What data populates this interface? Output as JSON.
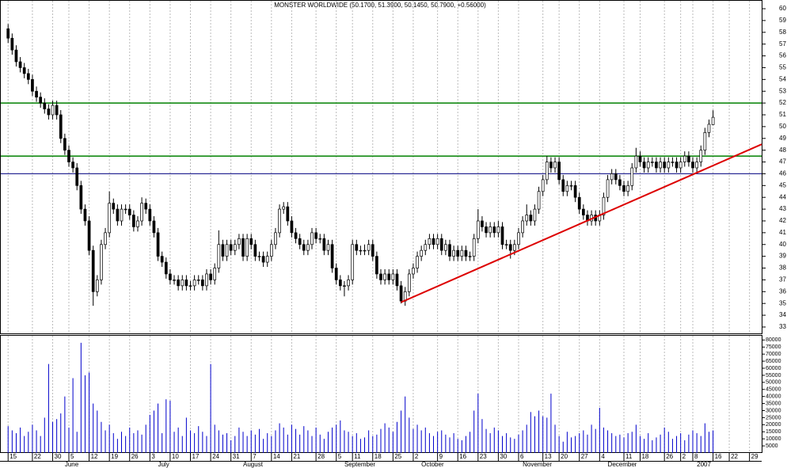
{
  "chart_data": {
    "type": "candlestick",
    "title": "MONSTER WORLDWIDE (50.1700, 51.3900, 50.1450, 50.7900, +0.56000)",
    "up_color": "#ffffff",
    "down_color": "#000000",
    "xlim": [
      -2,
      186
    ],
    "ylim": [
      32.46,
      60.74
    ],
    "yticks": [
      33,
      34,
      35,
      36,
      37,
      38,
      39,
      40,
      41,
      42,
      43,
      44,
      45,
      46,
      47,
      48,
      49,
      50,
      51,
      52,
      53,
      54,
      55,
      56,
      57,
      58,
      59,
      60
    ],
    "grid": "x",
    "xticks": [
      {
        "value": 0,
        "label": "15"
      },
      {
        "value": 6,
        "label": "22"
      },
      {
        "value": 11,
        "label": "30"
      },
      {
        "value": 15,
        "label": "5"
      },
      {
        "value": 20,
        "label": "12"
      },
      {
        "value": 25,
        "label": "19"
      },
      {
        "value": 30,
        "label": "26"
      },
      {
        "value": 35,
        "label": "3"
      },
      {
        "value": 40,
        "label": "10"
      },
      {
        "value": 45,
        "label": "17"
      },
      {
        "value": 50,
        "label": "24"
      },
      {
        "value": 55,
        "label": "31"
      },
      {
        "value": 60,
        "label": "7"
      },
      {
        "value": 65,
        "label": "14"
      },
      {
        "value": 70,
        "label": "21"
      },
      {
        "value": 76,
        "label": "28"
      },
      {
        "value": 81,
        "label": "5"
      },
      {
        "value": 85,
        "label": "11"
      },
      {
        "value": 90,
        "label": "18"
      },
      {
        "value": 95,
        "label": "25"
      },
      {
        "value": 100,
        "label": "2"
      },
      {
        "value": 106,
        "label": "9"
      },
      {
        "value": 111,
        "label": "16"
      },
      {
        "value": 116,
        "label": "23"
      },
      {
        "value": 121,
        "label": "30"
      },
      {
        "value": 126,
        "label": "6"
      },
      {
        "value": 132,
        "label": "13"
      },
      {
        "value": 136,
        "label": "20"
      },
      {
        "value": 141,
        "label": "27"
      },
      {
        "value": 146,
        "label": "4"
      },
      {
        "value": 152,
        "label": "11"
      },
      {
        "value": 156,
        "label": "18"
      },
      {
        "value": 162,
        "label": "26"
      },
      {
        "value": 166,
        "label": "2"
      },
      {
        "value": 169,
        "label": "8"
      },
      {
        "value": 174,
        "label": "16"
      },
      {
        "value": 178,
        "label": "22"
      },
      {
        "value": 183,
        "label": "29"
      }
    ],
    "month_labels": [
      {
        "value": 14,
        "label": "June"
      },
      {
        "value": 37,
        "label": "July"
      },
      {
        "value": 58,
        "label": "August"
      },
      {
        "value": 83,
        "label": "September"
      },
      {
        "value": 102,
        "label": "October"
      },
      {
        "value": 127,
        "label": "November"
      },
      {
        "value": 148,
        "label": "December"
      },
      {
        "value": 170,
        "label": "2007"
      }
    ],
    "open": [
      58.3,
      57.5,
      56.5,
      55.5,
      55,
      54.5,
      54,
      53,
      52.5,
      52,
      51.5,
      51,
      51.8,
      51,
      49,
      48,
      47,
      46.5,
      45,
      43,
      42,
      39.5,
      36,
      37,
      40,
      41,
      43.5,
      43,
      42,
      43,
      43,
      42.5,
      41.5,
      42,
      43.5,
      43,
      42,
      41,
      39,
      38.5,
      37.5,
      37,
      37,
      36.5,
      37,
      36.5,
      36.5,
      37,
      37,
      36.5,
      37.5,
      37,
      38,
      40,
      39,
      40,
      39.5,
      40,
      40.5,
      39,
      40.5,
      40,
      39,
      39,
      38.5,
      39,
      40,
      41,
      43,
      43.2,
      42,
      41,
      40.5,
      40,
      39.5,
      40,
      41,
      40.5,
      40.5,
      39.5,
      40,
      38,
      37,
      36.5,
      36.5,
      37,
      40,
      39.5,
      39.5,
      39.5,
      40,
      39,
      37.5,
      37,
      37.5,
      37,
      37.5,
      36.5,
      35.2,
      36,
      37.5,
      38,
      39,
      39.5,
      40,
      40.5,
      40,
      40.5,
      39.5,
      40,
      39,
      39.5,
      39,
      39.5,
      39,
      39,
      40.5,
      42,
      41.5,
      41,
      41.5,
      41,
      41.5,
      40,
      40,
      39.5,
      40,
      41,
      42,
      42.5,
      42,
      43,
      44.5,
      45.5,
      47,
      46.5,
      47,
      45.5,
      44.5,
      45,
      45,
      44,
      43,
      42.5,
      42,
      42.5,
      42,
      42.5,
      44,
      45.5,
      46,
      45.5,
      45,
      44.5,
      45,
      46.5,
      47.5,
      47,
      46.5,
      47,
      47,
      46.5,
      47,
      46.5,
      47,
      47,
      46.5,
      47,
      47.5,
      47,
      46.5,
      47,
      48,
      49.5,
      50.17
    ],
    "high": [
      58.7,
      57.9,
      56.9,
      55.9,
      55.4,
      54.9,
      54.4,
      53.4,
      52.9,
      52.4,
      51.9,
      52.2,
      52.2,
      51.4,
      49.4,
      48.4,
      47.4,
      46.9,
      45.4,
      43.4,
      42.4,
      39.9,
      37.4,
      40.4,
      41.4,
      44.5,
      43.9,
      43.4,
      43.4,
      43.4,
      43.4,
      42.9,
      42.4,
      44,
      43.9,
      43.4,
      42.4,
      41.4,
      39.4,
      38.9,
      37.9,
      37.4,
      37.4,
      37.4,
      37.4,
      36.9,
      37.4,
      37.4,
      37.4,
      37.9,
      37.9,
      38.4,
      41.2,
      40.4,
      40.4,
      40.4,
      40.4,
      40.9,
      40.9,
      40.9,
      40.9,
      40.4,
      39.4,
      39.4,
      39.4,
      40.4,
      41.4,
      43.4,
      43.6,
      43.6,
      42.4,
      41.4,
      40.9,
      40.4,
      40.4,
      41.4,
      41.4,
      40.9,
      40.9,
      40.4,
      40.4,
      38.4,
      37.4,
      36.9,
      37.4,
      40.4,
      40.4,
      39.9,
      40,
      40.4,
      40.4,
      39.4,
      37.9,
      37.9,
      37.9,
      37.9,
      37.9,
      36.9,
      36.4,
      37.9,
      38.4,
      39.4,
      39.9,
      40.4,
      40.9,
      40.9,
      40.9,
      40.9,
      40.4,
      40.4,
      39.9,
      39.9,
      39.9,
      39.9,
      39.4,
      40.9,
      43,
      42.4,
      41.9,
      41.9,
      41.9,
      42,
      41.9,
      40.4,
      40.4,
      40.4,
      41.4,
      42.4,
      43.4,
      42.9,
      43.4,
      44.9,
      45.9,
      47.5,
      47.4,
      47.4,
      47.4,
      45.9,
      45.4,
      45.4,
      45.4,
      44.4,
      43.4,
      42.9,
      42.9,
      42.9,
      42.9,
      44.4,
      45.9,
      46.4,
      46.4,
      45.9,
      45.4,
      45.4,
      46.9,
      48.2,
      47.9,
      47.4,
      47.4,
      47.4,
      47.4,
      47.4,
      47.4,
      47.4,
      47.4,
      47.4,
      47.4,
      47.9,
      47.9,
      47.4,
      47.4,
      48.4,
      49.9,
      50.6,
      51.39
    ],
    "low": [
      57.1,
      56.1,
      55.1,
      54.6,
      54.1,
      53.6,
      52.6,
      52.1,
      51.6,
      51.1,
      50.6,
      50.6,
      50.6,
      48.6,
      47.6,
      46.6,
      46.1,
      44.6,
      42.6,
      41.6,
      39.1,
      34.8,
      35.6,
      36.6,
      39.6,
      40.6,
      42.6,
      41.6,
      41.6,
      42.6,
      42.1,
      41.1,
      41.1,
      41.6,
      42.6,
      41.6,
      40.6,
      38.6,
      38.1,
      37.1,
      36.6,
      36.6,
      36.1,
      36.1,
      36.1,
      36.1,
      36.1,
      36.6,
      36.1,
      36.1,
      36.6,
      36.6,
      37.6,
      38.6,
      38.6,
      39.1,
      39.1,
      39.6,
      38.6,
      38.6,
      39.6,
      38.6,
      38.6,
      38.1,
      38.1,
      38.6,
      39.6,
      40.6,
      42.6,
      41.6,
      40.6,
      40.1,
      39.6,
      39.1,
      39.1,
      39.6,
      40.1,
      40.1,
      39.1,
      39.1,
      37.6,
      36.6,
      36.1,
      35.6,
      36.1,
      36.6,
      39.1,
      39.1,
      39.1,
      39.1,
      38.6,
      37.1,
      36.6,
      36.6,
      36.6,
      36.6,
      36.1,
      35,
      34.8,
      35.6,
      37.1,
      37.6,
      38.6,
      39.1,
      39.6,
      39.6,
      39.6,
      39.1,
      39.1,
      38.6,
      38.6,
      38.6,
      38.6,
      38.6,
      38.6,
      38.6,
      40.1,
      41.1,
      40.6,
      40.6,
      40.6,
      40.6,
      39.6,
      39.6,
      38.8,
      39.1,
      39.6,
      40.6,
      41.6,
      41.6,
      41.6,
      42.6,
      44.1,
      45.1,
      46.1,
      46.1,
      45.1,
      44.1,
      44.1,
      44.6,
      43.6,
      42.6,
      42.1,
      41.6,
      41.6,
      41.6,
      41.6,
      42.1,
      43.6,
      45.1,
      45.1,
      44.6,
      44.1,
      44.1,
      44.6,
      46.1,
      46.6,
      46.1,
      46.1,
      46.6,
      46.1,
      46.1,
      46.1,
      46.1,
      46.6,
      46.1,
      46.1,
      46.6,
      46.6,
      46.1,
      46.1,
      46.6,
      47.6,
      49.1,
      50.145
    ],
    "close": [
      57.5,
      56.5,
      55.5,
      55,
      54.5,
      54,
      53,
      52.5,
      52,
      51.5,
      51,
      51.8,
      51,
      49,
      48,
      47,
      46.5,
      45,
      43,
      42,
      39.5,
      36,
      37,
      40,
      41,
      43.5,
      43,
      42,
      43,
      43,
      42.5,
      41.5,
      42,
      43.5,
      43,
      42,
      41,
      39,
      38.5,
      37.5,
      37,
      37,
      36.5,
      37,
      36.5,
      36.5,
      37,
      37,
      36.5,
      37.5,
      37,
      38,
      40,
      39,
      40,
      39.5,
      40,
      40.5,
      39,
      40.5,
      40,
      39,
      39,
      38.5,
      39,
      40,
      41,
      43,
      43.2,
      42,
      41,
      40.5,
      40,
      39.5,
      40,
      41,
      40.5,
      40.5,
      39.5,
      40,
      38,
      37,
      36.5,
      36.5,
      37,
      40,
      39.5,
      39.5,
      39.5,
      40,
      39,
      37.5,
      37,
      37.5,
      37,
      37.5,
      36.5,
      35.2,
      36,
      37.5,
      38,
      39,
      39.5,
      40,
      40.5,
      40,
      40.5,
      39.5,
      40,
      39,
      39.5,
      39,
      39.5,
      39,
      39,
      40.5,
      42,
      41.5,
      41,
      41.5,
      41,
      41.5,
      40,
      40,
      39.5,
      40,
      41,
      42,
      42.5,
      42,
      43,
      44.5,
      45.5,
      47,
      46.5,
      47,
      45.5,
      44.5,
      45,
      45,
      44,
      43,
      42.5,
      42,
      42.5,
      42,
      42.5,
      44,
      45.5,
      46,
      45.5,
      45,
      44.5,
      45,
      46.5,
      47.5,
      47,
      46.5,
      47,
      47,
      46.5,
      47,
      46.5,
      47,
      47,
      46.5,
      47,
      47.5,
      47,
      46.5,
      47,
      48,
      49.5,
      50.2,
      50.79
    ],
    "hlines": [
      {
        "value": 52,
        "color": "#008000"
      },
      {
        "value": 47.5,
        "color": "#008000"
      },
      {
        "value": 46,
        "color": "#000080"
      }
    ],
    "trendline": {
      "x": [
        97,
        186
      ],
      "y": [
        35.1,
        48.5
      ],
      "color": "#dd0000"
    },
    "volume": {
      "color": "#0000cc",
      "ylim": [
        0,
        83000
      ],
      "yticks": [
        5000,
        10000,
        15000,
        20000,
        25000,
        30000,
        35000,
        40000,
        45000,
        50000,
        55000,
        60000,
        65000,
        70000,
        75000,
        80000
      ],
      "values": [
        19000,
        16000,
        14000,
        18000,
        12000,
        15000,
        20000,
        16000,
        12000,
        25000,
        63000,
        22000,
        24000,
        28000,
        40000,
        18000,
        53000,
        15000,
        78000,
        55000,
        57000,
        35000,
        30000,
        22000,
        16000,
        20000,
        14000,
        10000,
        15000,
        12000,
        18000,
        14000,
        16000,
        13000,
        20000,
        27000,
        30000,
        35000,
        14000,
        38000,
        37000,
        15000,
        18000,
        12000,
        25000,
        16000,
        14000,
        19000,
        15000,
        12000,
        63000,
        20000,
        16000,
        13000,
        14000,
        9000,
        12000,
        18000,
        15000,
        12000,
        16000,
        13000,
        17000,
        10000,
        14000,
        12000,
        16000,
        21000,
        18000,
        13000,
        20000,
        17000,
        13000,
        19000,
        16000,
        12000,
        18000,
        13000,
        10000,
        15000,
        18000,
        20000,
        23000,
        16000,
        15000,
        12000,
        14000,
        10000,
        11000,
        16000,
        12000,
        13000,
        17000,
        21000,
        18000,
        15000,
        22000,
        30000,
        40000,
        25000,
        17000,
        20000,
        16000,
        18000,
        14000,
        12000,
        15000,
        16000,
        13000,
        11000,
        14000,
        10000,
        9000,
        12000,
        15000,
        30000,
        42000,
        24000,
        17000,
        14000,
        18000,
        16000,
        12000,
        14000,
        11000,
        10000,
        13000,
        16000,
        20000,
        29000,
        26000,
        30000,
        26000,
        25000,
        42000,
        20000,
        12000,
        8000,
        15000,
        11000,
        12000,
        14000,
        16000,
        13000,
        20000,
        17000,
        32000,
        18000,
        16000,
        14000,
        12000,
        13000,
        11000,
        14000,
        15000,
        20000,
        12000,
        10000,
        14000,
        9000,
        11000,
        13000,
        18000,
        15000,
        10000,
        12000,
        14000,
        9000,
        13000,
        16000,
        14000,
        12000,
        21000,
        15000,
        16000
      ]
    }
  }
}
